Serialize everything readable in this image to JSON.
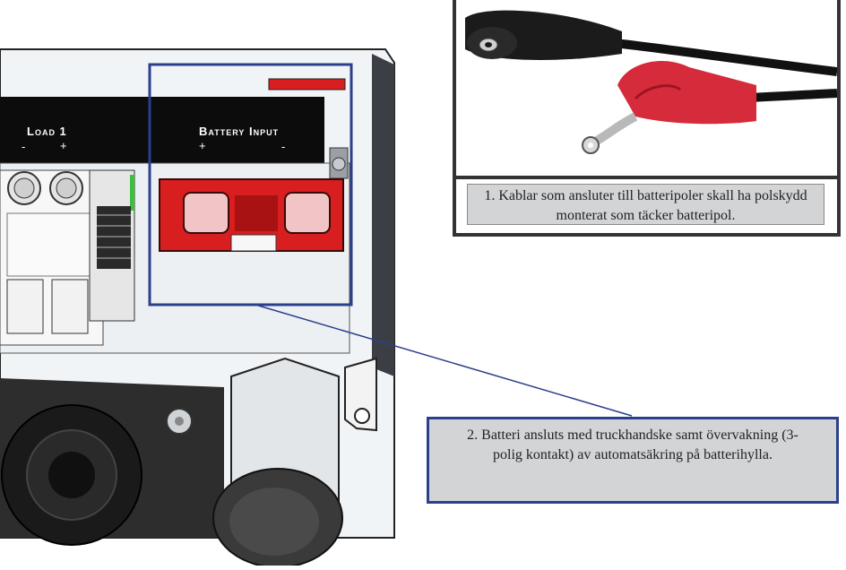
{
  "device": {
    "load_label": "Load 1",
    "load_minus": "-",
    "load_plus": "+",
    "battery_label": "Battery Input",
    "battery_plus": "+",
    "battery_minus": "-"
  },
  "callouts": {
    "cable_caption": "1. Kablar som ansluter till batteripoler skall ha polskydd monterat som täcker batteripol.",
    "battery_caption": "2. Batteri ansluts med truckhandske samt övervakning (3-polig kontakt) av automatsäkring på batterihylla."
  },
  "colors": {
    "highlight_frame": "#2b3f8c",
    "callout_border": "#2b3f8c",
    "photo_frame": "#333333",
    "connector_red": "#d81e1e",
    "caption_bg": "#d3d4d6"
  }
}
